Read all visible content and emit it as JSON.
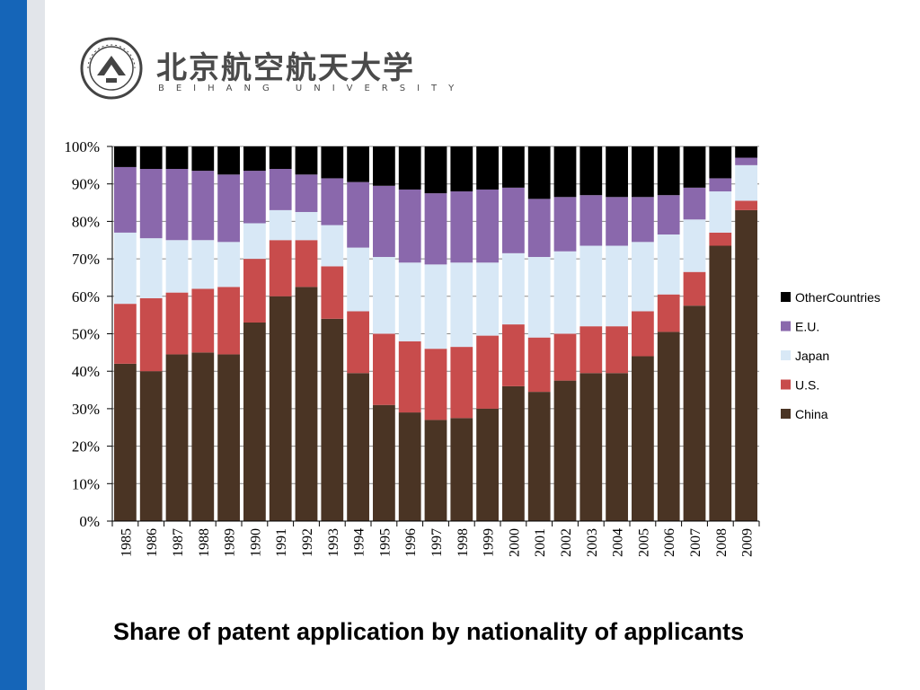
{
  "logo": {
    "name_cn": "北京航空航天大学",
    "name_en": "BEIHANG UNIVERSITY",
    "seal_text": "北京航空航天大学 BEIHANG UNIVERSITY 1952"
  },
  "caption": "Share of patent application by nationality of applicants",
  "colors": {
    "China": "#4a3424",
    "U.S.": "#c84c4c",
    "Japan": "#d8e8f6",
    "E.U.": "#8a68ac",
    "OtherCountries": "#000000",
    "side_bar_blue": "#1565b8",
    "side_bar_gray": "#e2e5ea"
  },
  "chart_data": {
    "type": "bar",
    "stacked": true,
    "title": "",
    "xlabel": "",
    "ylabel": "",
    "ylim": [
      0,
      100
    ],
    "yticks": [
      "0%",
      "10%",
      "20%",
      "30%",
      "40%",
      "50%",
      "60%",
      "70%",
      "80%",
      "90%",
      "100%"
    ],
    "categories": [
      "1985",
      "1986",
      "1987",
      "1988",
      "1989",
      "1990",
      "1991",
      "1992",
      "1993",
      "1994",
      "1995",
      "1996",
      "1997",
      "1998",
      "1999",
      "2000",
      "2001",
      "2002",
      "2003",
      "2004",
      "2005",
      "2006",
      "2007",
      "2008",
      "2009"
    ],
    "legend_position": "right",
    "grid": "horizontal",
    "series": [
      {
        "name": "China",
        "values": [
          42,
          40,
          44.5,
          45,
          44.5,
          53,
          60,
          62.5,
          54,
          39.5,
          31,
          29,
          27,
          27.5,
          30,
          36,
          34.5,
          37.5,
          39.5,
          39.5,
          44,
          50.5,
          57.5,
          73.5,
          83
        ]
      },
      {
        "name": "U.S.",
        "values": [
          16,
          19.5,
          16.5,
          17,
          18,
          17,
          15,
          12.5,
          14,
          16.5,
          19,
          19,
          19,
          19,
          19.5,
          16.5,
          14.5,
          12.5,
          12.5,
          12.5,
          12,
          10,
          9,
          3.5,
          2.5
        ]
      },
      {
        "name": "Japan",
        "values": [
          19,
          16,
          14,
          13,
          12,
          9.5,
          8,
          7.5,
          11,
          17,
          20.5,
          21,
          22.5,
          22.5,
          19.5,
          19,
          21.5,
          22,
          21.5,
          21.5,
          18.5,
          16,
          14,
          11,
          9.5
        ]
      },
      {
        "name": "E.U.",
        "values": [
          17.5,
          18.5,
          19,
          18.5,
          18,
          14,
          11,
          10,
          12.5,
          17.5,
          19,
          19.5,
          19,
          19,
          19.5,
          17.5,
          15.5,
          14.5,
          13.5,
          13,
          12,
          10.5,
          8.5,
          3.5,
          2
        ]
      },
      {
        "name": "OtherCountries",
        "values": [
          5.5,
          6,
          6,
          6.5,
          7.5,
          6.5,
          6,
          7.5,
          8.5,
          9.5,
          10.5,
          11.5,
          12.5,
          12,
          11.5,
          11,
          14,
          13.5,
          13,
          13.5,
          13.5,
          13,
          11,
          8.5,
          3
        ]
      }
    ],
    "legend_order": [
      "OtherCountries",
      "E.U.",
      "Japan",
      "U.S.",
      "China"
    ]
  }
}
